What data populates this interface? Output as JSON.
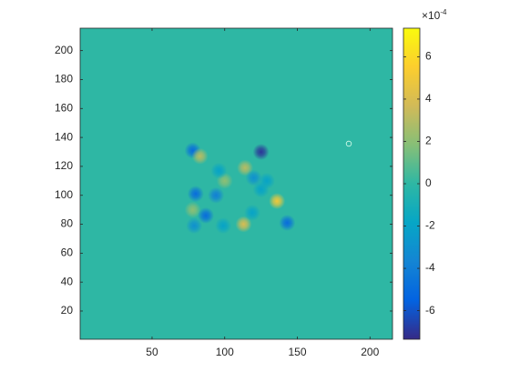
{
  "chart_data": {
    "type": "heatmap",
    "colormap": "parula",
    "background_value": 0,
    "xlim": [
      0.5,
      215.5
    ],
    "ylim": [
      0.5,
      215.5
    ],
    "xticks": [
      50,
      100,
      150,
      200
    ],
    "yticks": [
      20,
      40,
      60,
      80,
      100,
      120,
      140,
      160,
      180,
      200
    ],
    "clim": [
      -0.000735,
      0.000735
    ],
    "cticks": [
      {
        "value": -0.0006,
        "label": "-6"
      },
      {
        "value": -0.0004,
        "label": "-4"
      },
      {
        "value": -0.0002,
        "label": "-2"
      },
      {
        "value": 0,
        "label": "0"
      },
      {
        "value": 0.0002,
        "label": "2"
      },
      {
        "value": 0.0004,
        "label": "4"
      },
      {
        "value": 0.0006,
        "label": "6"
      }
    ],
    "colorbar_multiplier": {
      "base": "×10",
      "exponent": "-4"
    },
    "blobs": [
      {
        "x": 78,
        "y": 131,
        "value": -0.0005
      },
      {
        "x": 125,
        "y": 130,
        "value": -0.0007
      },
      {
        "x": 83,
        "y": 127,
        "value": 0.0003
      },
      {
        "x": 114,
        "y": 119,
        "value": 0.0003
      },
      {
        "x": 100,
        "y": 110,
        "value": 0.0002
      },
      {
        "x": 96,
        "y": 117,
        "value": -0.0002
      },
      {
        "x": 120,
        "y": 112,
        "value": -0.0003
      },
      {
        "x": 129,
        "y": 110,
        "value": -0.0002
      },
      {
        "x": 80,
        "y": 101,
        "value": -0.0005
      },
      {
        "x": 94,
        "y": 100,
        "value": -0.0004
      },
      {
        "x": 136,
        "y": 96,
        "value": 0.0005
      },
      {
        "x": 125,
        "y": 104,
        "value": -0.0002
      },
      {
        "x": 78,
        "y": 90,
        "value": 0.0002
      },
      {
        "x": 87,
        "y": 86,
        "value": -0.0005
      },
      {
        "x": 79,
        "y": 79,
        "value": -0.0003
      },
      {
        "x": 99,
        "y": 79,
        "value": -0.0002
      },
      {
        "x": 113,
        "y": 80,
        "value": 0.0004
      },
      {
        "x": 143,
        "y": 81,
        "value": -0.0005
      },
      {
        "x": 119,
        "y": 88,
        "value": -0.0002
      }
    ]
  }
}
